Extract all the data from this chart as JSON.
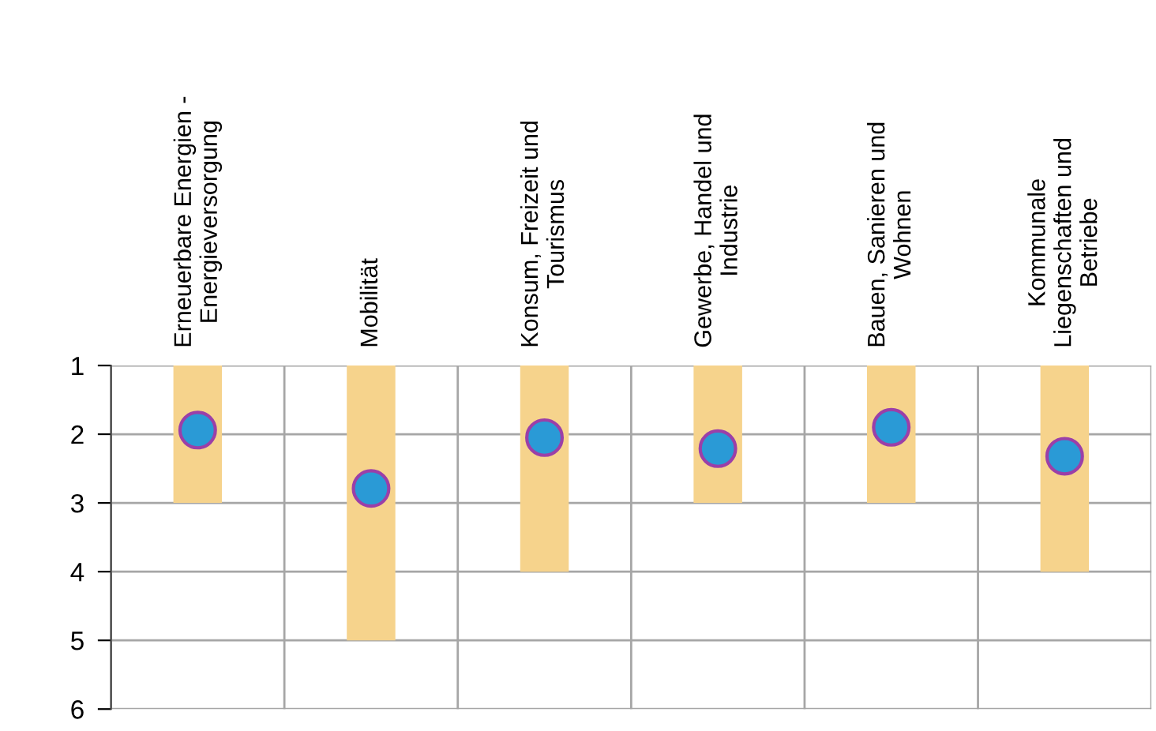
{
  "chart_data": {
    "type": "bar",
    "categories": [
      "Erneuerbare Energien -\nEnergieversorgung",
      "Mobilität",
      "Konsum, Freizeit und\nTourismus",
      "Gewerbe, Handel und\nIndustrie",
      "Bauen, Sanieren und\nWohnen",
      "Kommunale\nLiegenschaften und\nBetriebe"
    ],
    "series": [
      {
        "base": [
          1,
          1,
          1,
          1,
          1,
          1
        ],
        "values": [
          2,
          4,
          3,
          2,
          2,
          3
        ],
        "color": "#f6d38c"
      },
      {
        "type": "scatter",
        "values": [
          1.94,
          2.79,
          2.05,
          2.21,
          1.9,
          2.32
        ],
        "color": "#2a9ad6"
      }
    ],
    "ylim": [
      6,
      1
    ],
    "yticks": [
      1,
      2,
      3,
      4,
      5,
      6
    ],
    "grid": true,
    "marker": "circle",
    "legend": false
  }
}
